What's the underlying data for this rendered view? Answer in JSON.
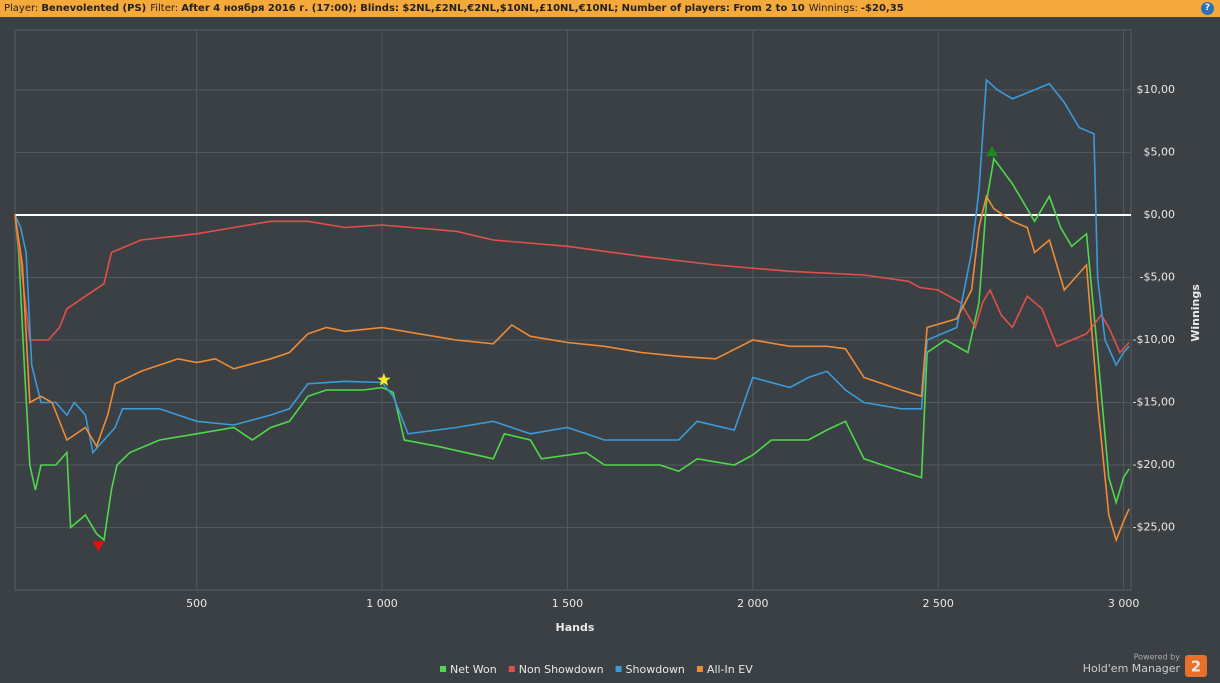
{
  "header": {
    "player_label": "Player:",
    "player": "Benevolented (PS)",
    "filter_label": "Filter:",
    "filter": "After 4 ноября 2016 г. (17:00); Blinds: $2NL,£2NL,€2NL,$10NL,£10NL,€10NL; Number of players: From 2 to 10",
    "winnings_label": "Winnings:",
    "winnings": "-$20,35",
    "help": "?"
  },
  "chart_data": {
    "type": "line",
    "x_label": "Hands",
    "y_label": "Winnings",
    "xlim": [
      10,
      3020
    ],
    "ylim": [
      -30,
      14.8
    ],
    "grid": true,
    "zero_line": true,
    "legend": "bottom",
    "xticks": [
      500,
      {
        "value": 1000,
        "label": "1 000"
      },
      {
        "value": 1500,
        "label": "1 500"
      },
      {
        "value": 2000,
        "label": "2 000"
      },
      {
        "value": 2500,
        "label": "2 500"
      },
      {
        "value": 3000,
        "label": "3 000"
      }
    ],
    "yticks": [
      {
        "value": 10,
        "label": "$10,00"
      },
      {
        "value": 5,
        "label": "$5,00"
      },
      {
        "value": 0,
        "label": "$0,00"
      },
      {
        "value": -5,
        "label": "-$5,00"
      },
      {
        "value": -10,
        "label": "-$10,00"
      },
      {
        "value": -15,
        "label": "-$15,00"
      },
      {
        "value": -20,
        "label": "-$20,00"
      },
      {
        "value": -25,
        "label": "-$25,00"
      }
    ],
    "series": [
      {
        "name": "Net Won",
        "color": "#4fd84a",
        "x": [
          10,
          20,
          35,
          50,
          65,
          80,
          120,
          150,
          160,
          200,
          230,
          250,
          270,
          285,
          320,
          400,
          500,
          600,
          650,
          700,
          750,
          800,
          850,
          950,
          1000,
          1030,
          1060,
          1150,
          1300,
          1330,
          1400,
          1430,
          1550,
          1600,
          1750,
          1800,
          1850,
          1950,
          2000,
          2050,
          2150,
          2200,
          2250,
          2300,
          2400,
          2455,
          2470,
          2520,
          2580,
          2610,
          2630,
          2650,
          2700,
          2730,
          2760,
          2800,
          2830,
          2860,
          2900,
          2930,
          2960,
          2980,
          3000,
          3015
        ],
        "values": [
          0,
          -3,
          -12,
          -20,
          -22,
          -20,
          -20,
          -19,
          -25,
          -24,
          -25.5,
          -26,
          -22,
          -20,
          -19,
          -18,
          -17.5,
          -17,
          -18,
          -17,
          -16.5,
          -14.5,
          -14,
          -14,
          -13.8,
          -14.2,
          -18,
          -18.5,
          -19.5,
          -17.5,
          -18,
          -19.5,
          -19,
          -20,
          -20,
          -20.5,
          -19.5,
          -20,
          -19.2,
          -18,
          -18,
          -17.2,
          -16.5,
          -19.5,
          -20.5,
          -21,
          -11,
          -10,
          -11,
          -7,
          1,
          4.5,
          2.5,
          1,
          -0.5,
          1.5,
          -1,
          -2.5,
          -1.5,
          -11,
          -21,
          -23,
          -21,
          -20.3
        ]
      },
      {
        "name": "Non Showdown",
        "color": "#e0504a",
        "x": [
          10,
          30,
          50,
          100,
          130,
          150,
          200,
          250,
          270,
          350,
          500,
          600,
          700,
          800,
          900,
          1000,
          1200,
          1300,
          1500,
          1700,
          1900,
          2100,
          2300,
          2420,
          2450,
          2500,
          2560,
          2600,
          2620,
          2640,
          2670,
          2700,
          2740,
          2780,
          2820,
          2860,
          2900,
          2940,
          2960,
          2990,
          3015
        ],
        "values": [
          0,
          -5,
          -10,
          -10,
          -9,
          -7.5,
          -6.5,
          -5.5,
          -3,
          -2,
          -1.5,
          -1,
          -0.5,
          -0.5,
          -1,
          -0.8,
          -1.3,
          -2,
          -2.5,
          -3.3,
          -4,
          -4.5,
          -4.8,
          -5.3,
          -5.8,
          -6,
          -7,
          -9,
          -7,
          -6,
          -8,
          -9,
          -6.5,
          -7.5,
          -10.5,
          -10,
          -9.5,
          -8,
          -9,
          -11,
          -10.2
        ]
      },
      {
        "name": "Showdown",
        "color": "#3b9ad8",
        "x": [
          10,
          25,
          40,
          55,
          80,
          120,
          150,
          170,
          200,
          220,
          250,
          280,
          300,
          400,
          500,
          600,
          700,
          750,
          800,
          900,
          1000,
          1030,
          1070,
          1200,
          1300,
          1400,
          1500,
          1600,
          1800,
          1850,
          1950,
          2000,
          2100,
          2150,
          2200,
          2250,
          2300,
          2400,
          2455,
          2470,
          2550,
          2590,
          2610,
          2630,
          2660,
          2700,
          2800,
          2840,
          2880,
          2920,
          2930,
          2950,
          2980,
          3000,
          3015
        ],
        "values": [
          0,
          -1,
          -3,
          -12,
          -15,
          -15,
          -16,
          -15,
          -16,
          -19,
          -18,
          -17,
          -15.5,
          -15.5,
          -16.5,
          -16.8,
          -16,
          -15.5,
          -13.5,
          -13.3,
          -13.4,
          -14.5,
          -17.5,
          -17,
          -16.5,
          -17.5,
          -17,
          -18,
          -18,
          -16.5,
          -17.2,
          -13,
          -13.8,
          -13,
          -12.5,
          -14,
          -15,
          -15.5,
          -15.5,
          -10,
          -9,
          -3,
          2,
          10.8,
          10,
          9.3,
          10.5,
          9,
          7,
          6.5,
          -5,
          -10,
          -12,
          -11,
          -10.5
        ]
      },
      {
        "name": "All-In EV",
        "color": "#ee8c35",
        "x": [
          10,
          30,
          50,
          80,
          110,
          150,
          200,
          230,
          260,
          280,
          350,
          450,
          500,
          550,
          600,
          700,
          750,
          800,
          850,
          900,
          1000,
          1100,
          1200,
          1300,
          1350,
          1400,
          1500,
          1600,
          1700,
          1800,
          1900,
          2000,
          2100,
          2200,
          2250,
          2300,
          2400,
          2455,
          2470,
          2550,
          2590,
          2610,
          2630,
          2650,
          2700,
          2740,
          2760,
          2800,
          2840,
          2870,
          2900,
          2930,
          2960,
          2980,
          3000,
          3015
        ],
        "values": [
          0,
          -4,
          -15,
          -14.5,
          -15,
          -18,
          -17,
          -18.5,
          -16,
          -13.5,
          -12.5,
          -11.5,
          -11.8,
          -11.5,
          -12.3,
          -11.5,
          -11,
          -9.5,
          -9,
          -9.3,
          -9,
          -9.5,
          -10,
          -10.3,
          -8.8,
          -9.7,
          -10.2,
          -10.5,
          -11,
          -11.3,
          -11.5,
          -10,
          -10.5,
          -10.5,
          -10.7,
          -13,
          -14,
          -14.5,
          -9,
          -8.3,
          -6,
          -1,
          1.5,
          0.5,
          -0.5,
          -1,
          -3,
          -2,
          -6,
          -5,
          -4,
          -15,
          -24,
          -26,
          -24.5,
          -23.5
        ]
      }
    ],
    "markers": [
      {
        "shape": "triangle-down",
        "color": "#e01010",
        "x": 235,
        "y": -26.5
      },
      {
        "shape": "star",
        "color": "#f5e626",
        "x": 1005,
        "y": -13.2
      },
      {
        "shape": "triangle-up",
        "color": "#1a8a1a",
        "x": 2645,
        "y": 5.1
      }
    ]
  },
  "branding": {
    "powered": "Powered by",
    "product": "Hold'em Manager",
    "version": "2"
  }
}
